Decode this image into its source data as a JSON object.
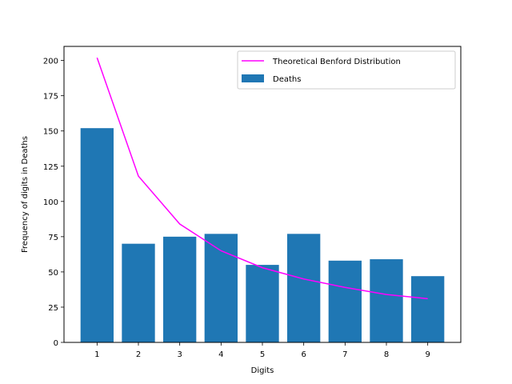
{
  "chart_data": {
    "type": "bar",
    "title": "",
    "xlabel": "Digits",
    "ylabel": "Frequency of digits in Deaths",
    "categories": [
      "1",
      "2",
      "3",
      "4",
      "5",
      "6",
      "7",
      "8",
      "9"
    ],
    "x": [
      1,
      2,
      3,
      4,
      5,
      6,
      7,
      8,
      9
    ],
    "xlim": [
      0.2,
      9.8
    ],
    "ylim": [
      0,
      210
    ],
    "xticks": [
      1,
      2,
      3,
      4,
      5,
      6,
      7,
      8,
      9
    ],
    "yticks": [
      0,
      25,
      50,
      75,
      100,
      125,
      150,
      175,
      200
    ],
    "grid": false,
    "legend_position": "top-right",
    "series": [
      {
        "name": "Deaths",
        "type": "bar",
        "color": "#1f77b4",
        "values": [
          152,
          70,
          75,
          77,
          55,
          77,
          58,
          59,
          47
        ]
      },
      {
        "name": "Theoretical Benford Distribution",
        "type": "line",
        "color": "#ff00ff",
        "values": [
          202,
          118,
          84,
          65,
          53,
          45,
          39,
          34,
          31
        ]
      }
    ]
  }
}
